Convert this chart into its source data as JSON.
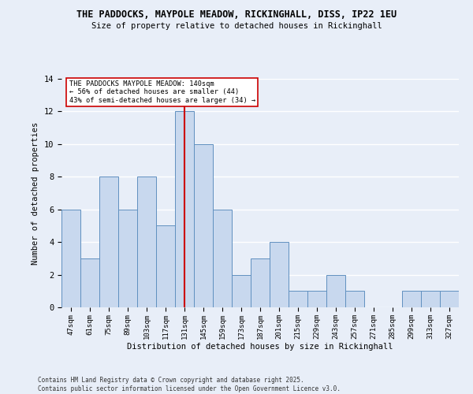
{
  "title_line1": "THE PADDOCKS, MAYPOLE MEADOW, RICKINGHALL, DISS, IP22 1EU",
  "title_line2": "Size of property relative to detached houses in Rickinghall",
  "xlabel": "Distribution of detached houses by size in Rickinghall",
  "ylabel": "Number of detached properties",
  "categories": [
    "47sqm",
    "61sqm",
    "75sqm",
    "89sqm",
    "103sqm",
    "117sqm",
    "131sqm",
    "145sqm",
    "159sqm",
    "173sqm",
    "187sqm",
    "201sqm",
    "215sqm",
    "229sqm",
    "243sqm",
    "257sqm",
    "271sqm",
    "285sqm",
    "299sqm",
    "313sqm",
    "327sqm"
  ],
  "values": [
    6,
    3,
    8,
    6,
    8,
    5,
    12,
    10,
    6,
    2,
    3,
    4,
    1,
    1,
    2,
    1,
    0,
    0,
    1,
    1,
    1
  ],
  "bar_color": "#c8d8ee",
  "bar_edge_color": "#6090c0",
  "vline_color": "#cc0000",
  "vline_x": 6.5,
  "ylim": [
    0,
    14
  ],
  "yticks": [
    0,
    2,
    4,
    6,
    8,
    10,
    12,
    14
  ],
  "bg_color": "#e8eef8",
  "grid_color": "#ffffff",
  "redline_label": "THE PADDOCKS MAYPOLE MEADOW: 140sqm",
  "annotation_line2": "← 56% of detached houses are smaller (44)",
  "annotation_line3": "43% of semi-detached houses are larger (34) →",
  "annotation_box_color": "#ffffff",
  "annotation_box_edge": "#cc0000",
  "footer_line1": "Contains HM Land Registry data © Crown copyright and database right 2025.",
  "footer_line2": "Contains public sector information licensed under the Open Government Licence v3.0."
}
